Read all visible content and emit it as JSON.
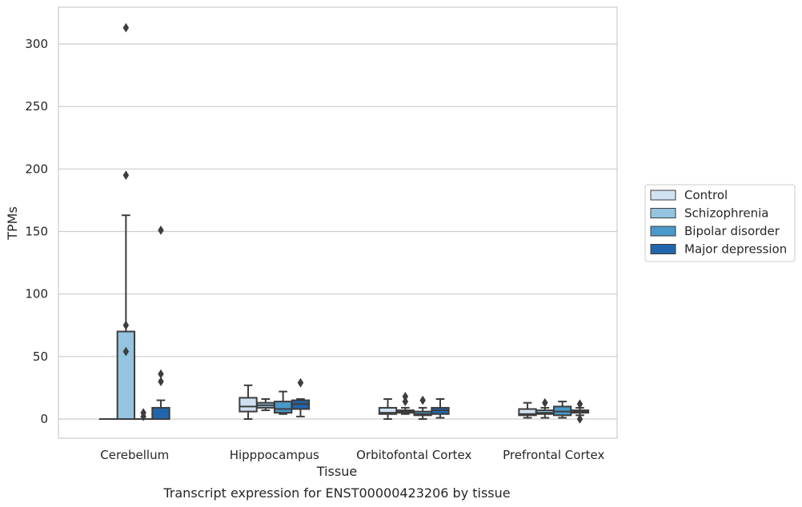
{
  "chart_data": {
    "type": "box",
    "caption": "Transcript expression for ENST00000423206 by tissue",
    "xlabel": "Tissue",
    "ylabel": "TPMs",
    "ylim": [
      -15,
      330
    ],
    "yticks": [
      0,
      50,
      100,
      150,
      200,
      250,
      300
    ],
    "grid": true,
    "legend_position": "right",
    "categories": [
      "Cerebellum",
      "Hipppocampus",
      "Orbitofontal Cortex",
      "Prefrontal Cortex"
    ],
    "series": [
      {
        "name": "Control",
        "color": "#d0e1f2",
        "boxes": [
          {
            "whislo": 0,
            "q1": 0,
            "med": 0,
            "q3": 0,
            "whishi": 0,
            "fliers": []
          },
          {
            "whislo": 0,
            "q1": 6,
            "med": 10,
            "q3": 17,
            "whishi": 27,
            "fliers": []
          },
          {
            "whislo": 0,
            "q1": 4,
            "med": 5,
            "q3": 9,
            "whishi": 16,
            "fliers": []
          },
          {
            "whislo": 1,
            "q1": 3,
            "med": 4,
            "q3": 8,
            "whishi": 13,
            "fliers": []
          }
        ]
      },
      {
        "name": "Schizophrenia",
        "color": "#94c4df",
        "boxes": [
          {
            "whislo": 0,
            "q1": 0,
            "med": 0,
            "q3": 70,
            "whishi": 163,
            "fliers": [
              195,
              313,
              75,
              54
            ]
          },
          {
            "whislo": 7,
            "q1": 9,
            "med": 11,
            "q3": 13,
            "whishi": 16,
            "fliers": []
          },
          {
            "whislo": 4,
            "q1": 5,
            "med": 6,
            "q3": 7,
            "whishi": 9,
            "fliers": [
              14,
              18
            ]
          },
          {
            "whislo": 1,
            "q1": 4,
            "med": 5,
            "q3": 7,
            "whishi": 9,
            "fliers": [
              13
            ]
          }
        ]
      },
      {
        "name": "Bipolar disorder",
        "color": "#4a98c9",
        "boxes": [
          {
            "whislo": 0,
            "q1": 0,
            "med": 0,
            "q3": 0,
            "whishi": 0,
            "fliers": [
              2,
              5
            ]
          },
          {
            "whislo": 4,
            "q1": 5,
            "med": 8,
            "q3": 14,
            "whishi": 22,
            "fliers": []
          },
          {
            "whislo": 0,
            "q1": 3,
            "med": 4,
            "q3": 6,
            "whishi": 9,
            "fliers": [
              15
            ]
          },
          {
            "whislo": 1,
            "q1": 3,
            "med": 6,
            "q3": 10,
            "whishi": 14,
            "fliers": []
          }
        ]
      },
      {
        "name": "Major depression",
        "color": "#2166ac",
        "boxes": [
          {
            "whislo": 0,
            "q1": 0,
            "med": 0,
            "q3": 9,
            "whishi": 15,
            "fliers": [
              151,
              36,
              30
            ]
          },
          {
            "whislo": 2,
            "q1": 8,
            "med": 12,
            "q3": 15,
            "whishi": 16,
            "fliers": [
              29
            ]
          },
          {
            "whislo": 1,
            "q1": 4,
            "med": 7,
            "q3": 9,
            "whishi": 16,
            "fliers": []
          },
          {
            "whislo": 3,
            "q1": 5,
            "med": 6,
            "q3": 7,
            "whishi": 9,
            "fliers": [
              12,
              0
            ]
          }
        ]
      }
    ]
  }
}
